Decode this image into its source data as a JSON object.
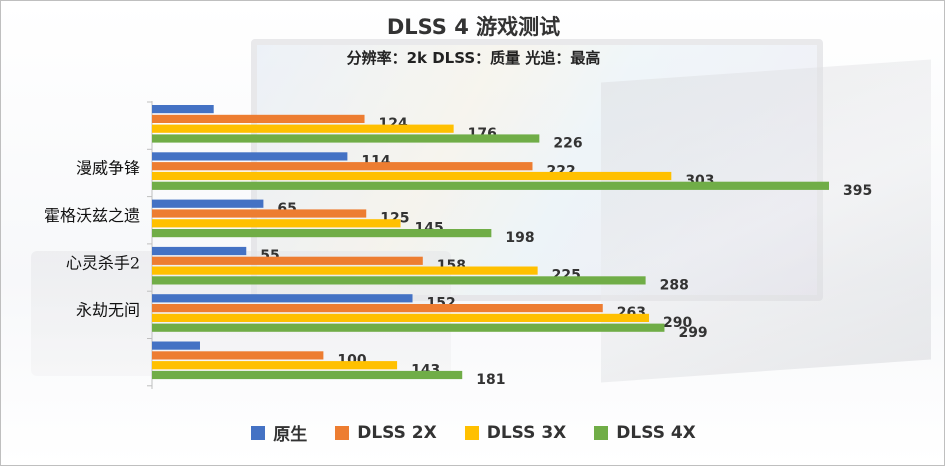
{
  "chart_data": {
    "type": "bar",
    "orientation": "horizontal",
    "title": "DLSS 4 游戏测试",
    "subtitle": "分辨率：2k DLSS：质量 光追：最高",
    "categories": [
      "",
      "漫威争锋",
      "霍格沃兹之遗",
      "心灵杀手2",
      "永劫无间",
      ""
    ],
    "series": [
      {
        "name": "原生",
        "color": "#4472C4",
        "values": [
          null,
          114,
          65,
          55,
          152,
          null
        ],
        "labels": [
          "",
          "114",
          "65",
          "55",
          "152",
          ""
        ]
      },
      {
        "name": "DLSS 2X",
        "color": "#ED7D31",
        "values": [
          124,
          222,
          125,
          158,
          263,
          100
        ],
        "labels": [
          "124",
          "222",
          "125",
          "158",
          "263",
          "100"
        ]
      },
      {
        "name": "DLSS 3X",
        "color": "#FFC000",
        "values": [
          176,
          303,
          145,
          225,
          290,
          143
        ],
        "labels": [
          "176",
          "303",
          "145",
          "225",
          "290",
          "143"
        ]
      },
      {
        "name": "DLSS 4X",
        "color": "#70AD47",
        "values": [
          226,
          395,
          198,
          288,
          299,
          181
        ],
        "labels": [
          "226",
          "395",
          "198",
          "288",
          "299",
          "181"
        ]
      }
    ],
    "unhidden_partial_values": {
      "原生": [
        36,
        28
      ]
    },
    "xlim": [
      0,
      400
    ],
    "grid": false,
    "legend_position": "bottom"
  }
}
